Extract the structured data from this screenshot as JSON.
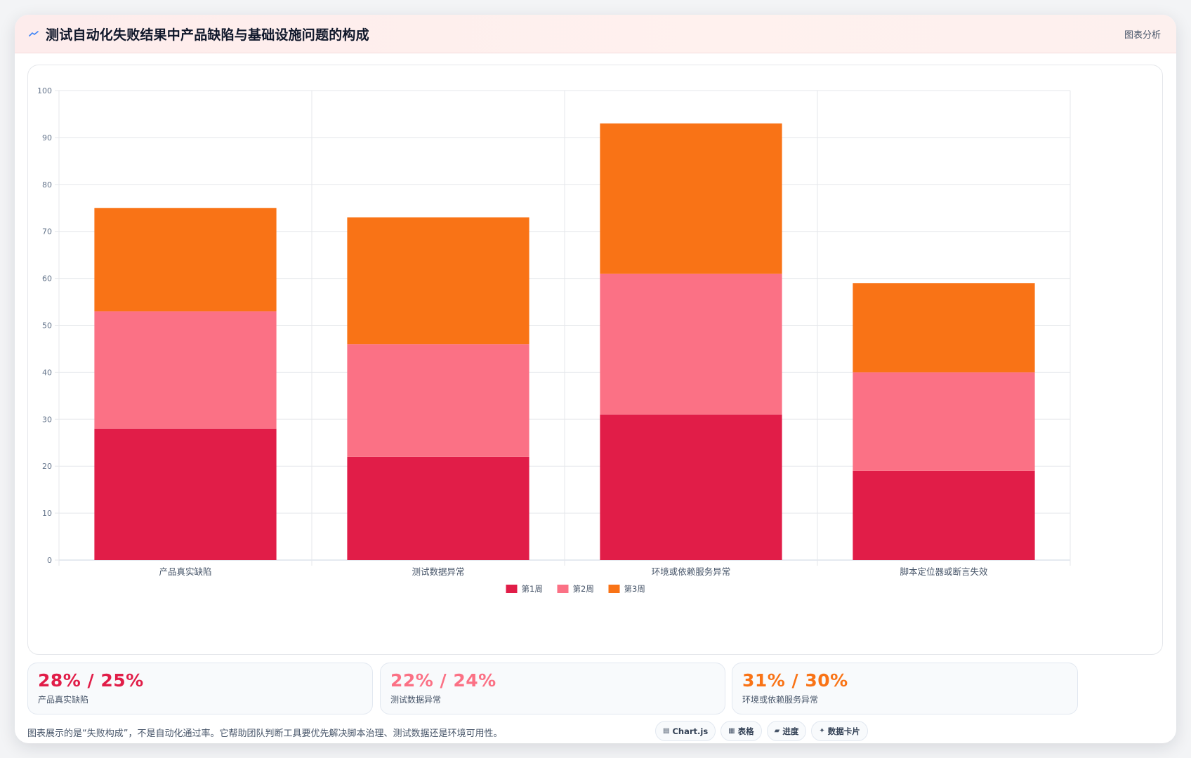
{
  "header": {
    "title": "测试自动化失败结果中产品缺陷与基础设施问题的构成",
    "tag": "图表分析"
  },
  "chart_data": {
    "type": "bar",
    "stacked": true,
    "categories": [
      "产品真实缺陷",
      "测试数据异常",
      "环境或依赖服务异常",
      "脚本定位器或断言失效"
    ],
    "series": [
      {
        "name": "第1周",
        "color": "#e11d48",
        "values": [
          28,
          22,
          31,
          19
        ]
      },
      {
        "name": "第2周",
        "color": "#fb7185",
        "values": [
          25,
          24,
          30,
          21
        ]
      },
      {
        "name": "第3周",
        "color": "#f97316",
        "values": [
          22,
          27,
          32,
          19
        ]
      }
    ],
    "ylim": [
      0,
      100
    ],
    "yticks": [
      "0",
      "10",
      "20",
      "30",
      "40",
      "50",
      "60",
      "70",
      "80",
      "90",
      "100"
    ],
    "grid": true,
    "legend_position": "bottom-center"
  },
  "stats": [
    {
      "value": "28% / 25%",
      "label": "产品真实缺陷",
      "color": "#e11d48"
    },
    {
      "value": "22% / 24%",
      "label": "测试数据异常",
      "color": "#fb7185"
    },
    {
      "value": "31% / 30%",
      "label": "环境或依赖服务异常",
      "color": "#f97316"
    }
  ],
  "footnote": "图表展示的是“失败构成”，不是自动化通过率。它帮助团队判断工具要优先解决脚本治理、测试数据还是环境可用性。",
  "tags": [
    {
      "icon": "chart-icon",
      "glyph": "▤",
      "label": "Chart.js"
    },
    {
      "icon": "table-icon",
      "glyph": "▦",
      "label": "表格"
    },
    {
      "icon": "progress-icon",
      "glyph": "▰",
      "label": "进度"
    },
    {
      "icon": "sparkle-icon",
      "glyph": "✦",
      "label": "数据卡片"
    }
  ]
}
